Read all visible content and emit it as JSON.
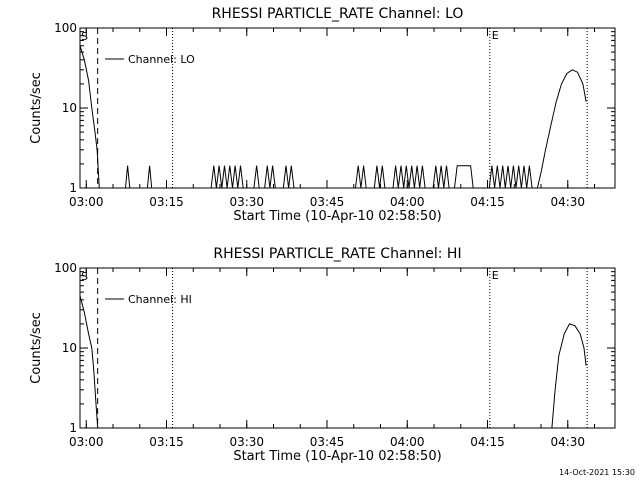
{
  "chart_data": [
    {
      "type": "line",
      "title": "RHESSI PARTICLE_RATE Channel: LO",
      "xlabel": "Start Time (10-Apr-10 02:58:50)",
      "ylabel": "Counts/sec",
      "yscale": "log",
      "ylim": [
        1,
        100
      ],
      "xlim": [
        0,
        100
      ],
      "x_unit": "minutes after 02:58:50",
      "xticks": [
        {
          "x": 1.17,
          "label": "03:00"
        },
        {
          "x": 16.17,
          "label": "03:15"
        },
        {
          "x": 31.17,
          "label": "03:30"
        },
        {
          "x": 46.17,
          "label": "03:45"
        },
        {
          "x": 61.17,
          "label": "04:00"
        },
        {
          "x": 76.17,
          "label": "04:15"
        },
        {
          "x": 91.17,
          "label": "04:30"
        }
      ],
      "yticks": [
        {
          "y": 1,
          "label": "1"
        },
        {
          "y": 10,
          "label": "10"
        },
        {
          "y": 100,
          "label": "100"
        }
      ],
      "markers": {
        "start_label": "S",
        "end_label": "E"
      },
      "vlines": [
        {
          "x": 3.3,
          "style": "dashed"
        },
        {
          "x": 17.3,
          "style": "dotted"
        },
        {
          "x": 76.6,
          "style": "dotted"
        },
        {
          "x": 94.8,
          "style": "dotted"
        }
      ],
      "legend": "Channel: LO",
      "series": [
        {
          "name": "Channel: LO",
          "points": [
            [
              0,
              60
            ],
            [
              0.8,
              40
            ],
            [
              1.6,
              22
            ],
            [
              2.2,
              10
            ],
            [
              2.8,
              5
            ],
            [
              3.2,
              3
            ],
            [
              3.6,
              1
            ],
            [
              8.5,
              1
            ],
            [
              8.9,
              1.9
            ],
            [
              9.3,
              1
            ],
            [
              12.6,
              1
            ],
            [
              13.0,
              1.9
            ],
            [
              13.4,
              1
            ],
            [
              24.5,
              1
            ],
            [
              25.0,
              1.9
            ],
            [
              25.5,
              1
            ],
            [
              26.0,
              1.9
            ],
            [
              26.5,
              1
            ],
            [
              27.0,
              1.9
            ],
            [
              27.5,
              1
            ],
            [
              28.0,
              1.9
            ],
            [
              28.5,
              1
            ],
            [
              29.0,
              1.9
            ],
            [
              29.5,
              1
            ],
            [
              30.0,
              1.9
            ],
            [
              30.5,
              1
            ],
            [
              32.5,
              1
            ],
            [
              33.0,
              1.9
            ],
            [
              33.5,
              1
            ],
            [
              34.5,
              1
            ],
            [
              35.0,
              1.9
            ],
            [
              35.5,
              1
            ],
            [
              36.0,
              1.9
            ],
            [
              36.5,
              1
            ],
            [
              38.0,
              1
            ],
            [
              38.5,
              1.9
            ],
            [
              39.0,
              1
            ],
            [
              39.5,
              1.9
            ],
            [
              40.0,
              1
            ],
            [
              51.5,
              1
            ],
            [
              52.0,
              1.9
            ],
            [
              52.5,
              1
            ],
            [
              53.0,
              1.9
            ],
            [
              53.5,
              1
            ],
            [
              55.0,
              1
            ],
            [
              55.5,
              1.9
            ],
            [
              56.0,
              1
            ],
            [
              56.5,
              1.9
            ],
            [
              57.0,
              1
            ],
            [
              58.5,
              1
            ],
            [
              59.0,
              1.9
            ],
            [
              59.5,
              1
            ],
            [
              60.0,
              1.9
            ],
            [
              60.5,
              1
            ],
            [
              61.0,
              1.9
            ],
            [
              61.5,
              1
            ],
            [
              62.0,
              1.9
            ],
            [
              62.5,
              1
            ],
            [
              63.0,
              1.9
            ],
            [
              63.5,
              1
            ],
            [
              64.0,
              1.9
            ],
            [
              64.5,
              1
            ],
            [
              66.0,
              1
            ],
            [
              66.5,
              1.9
            ],
            [
              67.0,
              1
            ],
            [
              67.5,
              1.9
            ],
            [
              68.0,
              1
            ],
            [
              68.5,
              1.9
            ],
            [
              69.0,
              1
            ],
            [
              70.0,
              1
            ],
            [
              70.5,
              1.9
            ],
            [
              71.0,
              1.9
            ],
            [
              71.5,
              1.9
            ],
            [
              72.0,
              1.9
            ],
            [
              72.5,
              1.9
            ],
            [
              73.0,
              1.9
            ],
            [
              73.5,
              1
            ],
            [
              76.5,
              1
            ],
            [
              77.0,
              1.9
            ],
            [
              77.5,
              1
            ],
            [
              78.0,
              1.9
            ],
            [
              78.5,
              1
            ],
            [
              79.0,
              1.9
            ],
            [
              79.5,
              1
            ],
            [
              80.0,
              1.9
            ],
            [
              80.5,
              1
            ],
            [
              81.0,
              1.9
            ],
            [
              81.5,
              1
            ],
            [
              82.0,
              1.9
            ],
            [
              82.5,
              1
            ],
            [
              83.0,
              1.9
            ],
            [
              83.5,
              1
            ],
            [
              84.0,
              1.9
            ],
            [
              84.5,
              1
            ],
            [
              85.5,
              1
            ],
            [
              86.2,
              1.6
            ],
            [
              87.0,
              3
            ],
            [
              88.0,
              6
            ],
            [
              89.0,
              12
            ],
            [
              90.0,
              20
            ],
            [
              91.0,
              27
            ],
            [
              92.0,
              30
            ],
            [
              93.0,
              28
            ],
            [
              94.0,
              20
            ],
            [
              94.6,
              12
            ]
          ]
        }
      ]
    },
    {
      "type": "line",
      "title": "RHESSI PARTICLE_RATE Channel: HI",
      "xlabel": "Start Time (10-Apr-10 02:58:50)",
      "ylabel": "Counts/sec",
      "yscale": "log",
      "ylim": [
        1,
        100
      ],
      "xlim": [
        0,
        100
      ],
      "x_unit": "minutes after 02:58:50",
      "xticks": [
        {
          "x": 1.17,
          "label": "03:00"
        },
        {
          "x": 16.17,
          "label": "03:15"
        },
        {
          "x": 31.17,
          "label": "03:30"
        },
        {
          "x": 46.17,
          "label": "03:45"
        },
        {
          "x": 61.17,
          "label": "04:00"
        },
        {
          "x": 76.17,
          "label": "04:15"
        },
        {
          "x": 91.17,
          "label": "04:30"
        }
      ],
      "yticks": [
        {
          "y": 1,
          "label": "1"
        },
        {
          "y": 10,
          "label": "10"
        },
        {
          "y": 100,
          "label": "100"
        }
      ],
      "markers": {
        "start_label": "S",
        "end_label": "E"
      },
      "vlines": [
        {
          "x": 3.3,
          "style": "dashed"
        },
        {
          "x": 17.3,
          "style": "dotted"
        },
        {
          "x": 76.6,
          "style": "dotted"
        },
        {
          "x": 94.8,
          "style": "dotted"
        }
      ],
      "legend": "Channel: HI",
      "series": [
        {
          "name": "Channel: HI",
          "points": [
            [
              0,
              45
            ],
            [
              0.8,
              28
            ],
            [
              1.6,
              15
            ],
            [
              2.2,
              10
            ],
            [
              2.6,
              5
            ],
            [
              3.0,
              2
            ],
            [
              3.3,
              1
            ],
            [
              88.2,
              1
            ],
            [
              88.8,
              3
            ],
            [
              89.5,
              8
            ],
            [
              90.5,
              15
            ],
            [
              91.5,
              20
            ],
            [
              92.5,
              19
            ],
            [
              93.5,
              15
            ],
            [
              94.2,
              10
            ],
            [
              94.6,
              6
            ]
          ]
        }
      ]
    }
  ],
  "footer": {
    "timestamp": "14-Oct-2021 15:30"
  }
}
